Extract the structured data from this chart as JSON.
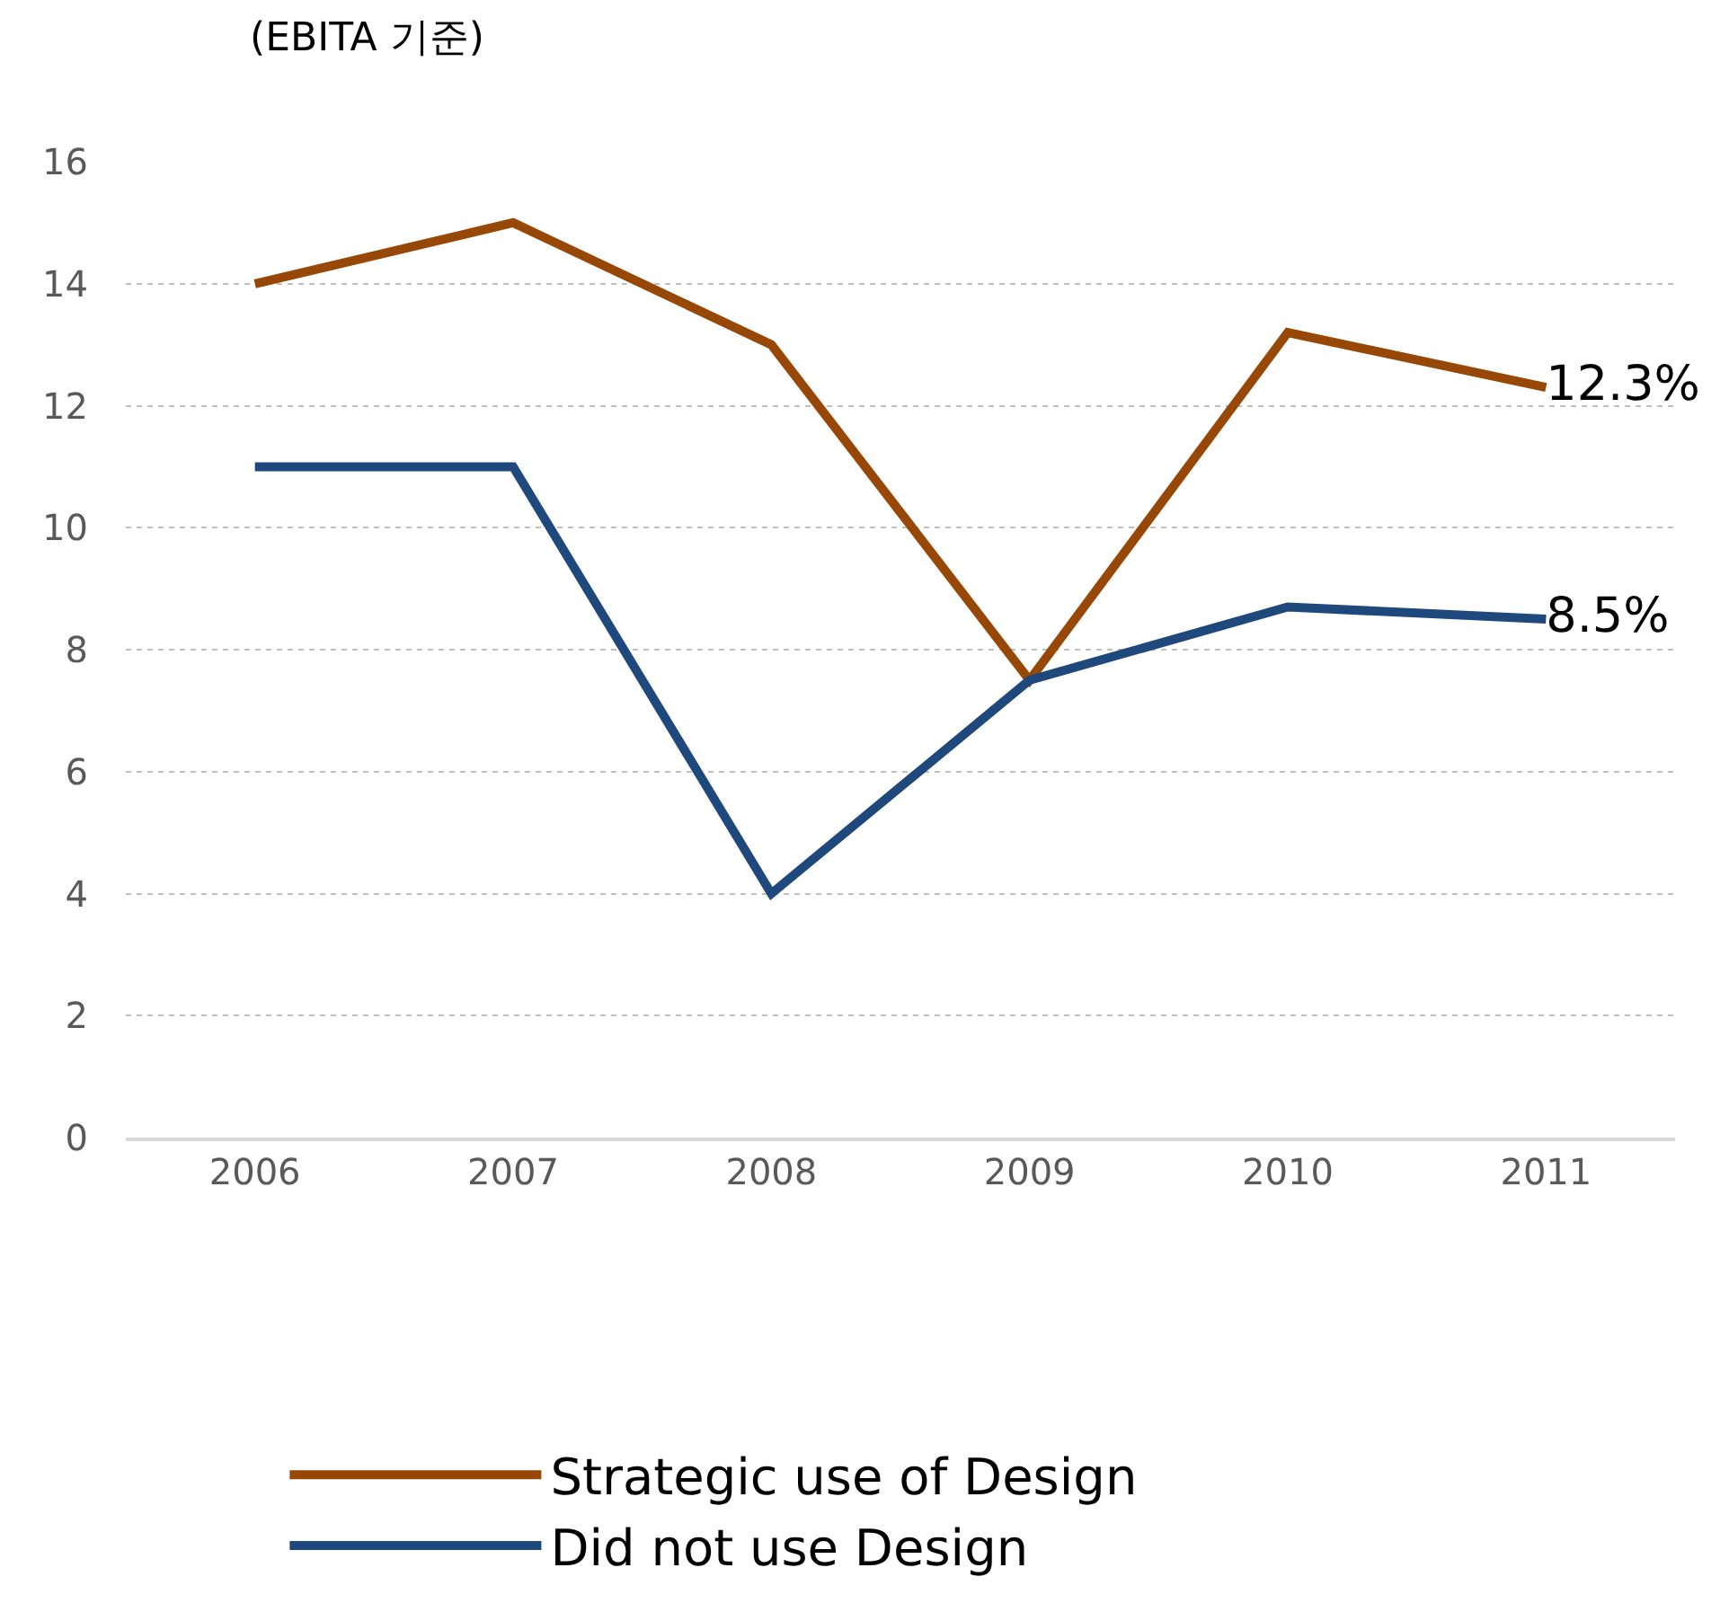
{
  "chart_data": {
    "type": "line",
    "ylabel": "(EBITA 기준)",
    "categories": [
      "2006",
      "2007",
      "2008",
      "2009",
      "2010",
      "2011"
    ],
    "series": [
      {
        "name": "Strategic use of Design",
        "color": "#974806",
        "values": [
          14,
          15,
          13,
          7.5,
          13.2,
          12.3
        ],
        "value_labels": [
          null,
          null,
          null,
          null,
          null,
          "12.3%"
        ]
      },
      {
        "name": "Did not use Design",
        "color": "#1f497d",
        "values": [
          11,
          11,
          4,
          7.5,
          8.7,
          8.5
        ],
        "value_labels": [
          null,
          null,
          null,
          null,
          null,
          "8.5%"
        ]
      }
    ],
    "ylim": [
      0,
      16
    ],
    "yticks": [
      0,
      2,
      4,
      6,
      8,
      10,
      12,
      14,
      16
    ],
    "grid": "y",
    "legend": "bottom",
    "marker": "none",
    "line_style": "solid"
  }
}
